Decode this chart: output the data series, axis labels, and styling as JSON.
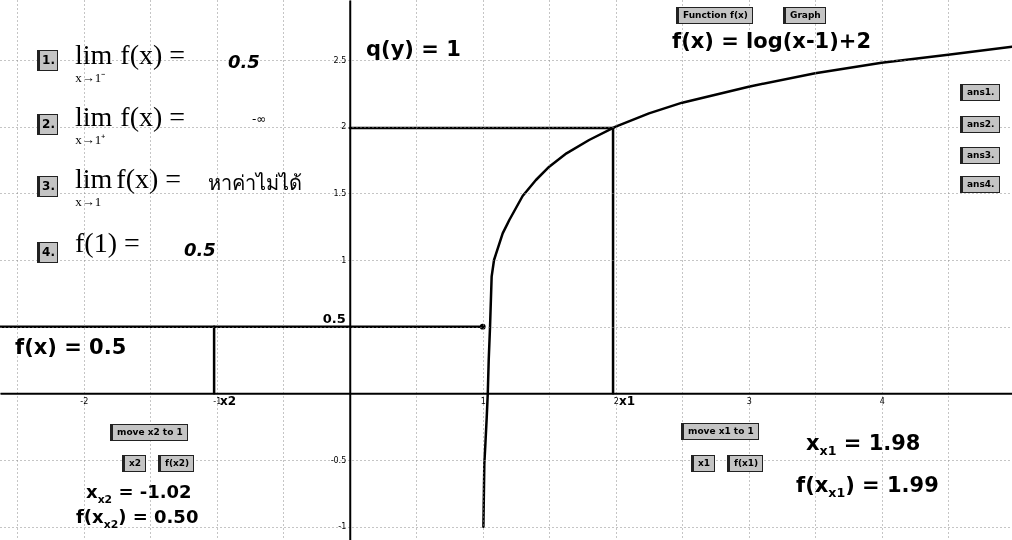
{
  "chart_data": {
    "type": "line",
    "xlim": [
      -2.63,
      4.98
    ],
    "ylim": [
      -1.1,
      2.95
    ],
    "xticks": [
      {
        "value": -2.5,
        "label": null
      },
      -2,
      {
        "value": -1.5,
        "label": null
      },
      -1,
      {
        "value": -0.5,
        "label": null
      },
      {
        "value": 0,
        "label": null
      },
      {
        "value": 0.5,
        "label": null
      },
      1,
      {
        "value": 1.5,
        "label": null
      },
      2,
      {
        "value": 2.5,
        "label": null
      },
      3,
      {
        "value": 3.5,
        "label": null
      },
      4,
      {
        "value": 4.5,
        "label": null
      }
    ],
    "yticks": [
      -1,
      -0.5,
      {
        "value": 0,
        "label": null
      },
      {
        "value": 0.5,
        "label": null
      },
      1,
      1.5,
      2,
      2.5
    ],
    "grid": true,
    "series": [
      {
        "color": "#000000",
        "x": [
          1.005,
          1.012,
          1.02,
          1.03,
          1.038,
          1.045,
          1.055,
          1.067,
          1.085,
          1.15,
          1.2,
          1.3,
          1.4,
          1.5,
          1.63,
          1.8,
          2,
          2.25,
          2.5,
          2.75,
          3,
          3.5,
          4,
          4.5,
          4.98
        ],
        "values": [
          -1,
          -0.53,
          -0.38,
          -0.18,
          0,
          0.25,
          0.5,
          0.875,
          1,
          1.2,
          1.3,
          1.48,
          1.6,
          1.7,
          1.8,
          1.9,
          2,
          2.1,
          2.18,
          2.24,
          2.3,
          2.4,
          2.48,
          2.54,
          2.6
        ]
      },
      {
        "color": "#000000",
        "x": [
          -2.63,
          1
        ],
        "values": [
          0.5,
          0.5
        ]
      },
      {
        "color": "#000000",
        "x": [
          -1.02,
          -1.02
        ],
        "values": [
          0,
          0.5
        ]
      },
      {
        "color": "#000000",
        "x": [
          1.98,
          1.98
        ],
        "values": [
          0,
          1.99
        ]
      },
      {
        "color": "#000000",
        "x": [
          0,
          1.98
        ],
        "values": [
          1.99,
          1.99
        ]
      },
      {
        "type": "scatter",
        "color": "#000000",
        "x": [
          1
        ],
        "values": [
          0.5
        ]
      }
    ],
    "annotations": [
      "1.",
      "lim$_{x→1⁻}$ f(x) =",
      "0.5",
      "2.",
      "lim$_{x→1⁺}$ f(x) =",
      "-∞",
      "3.",
      "lim$_{x→1}$ f(x) =",
      "หาค่าไม่ได้",
      "4.",
      "f(1) =",
      "0.5",
      "q(y) = 1",
      "Function f(x)",
      "Graph",
      "f(x) = log(x-1)+2",
      "ans1.",
      "ans2.",
      "ans3.",
      "ans4.",
      "f(x) = 0.5",
      "move x2 to 1",
      "x2",
      "f(x2)",
      "x$_{x2}$ = -1.02",
      "f(x$_{x2}$) = 0.50",
      "move x1 to 1",
      "x1",
      "f(x1)",
      "x$_{x1}$ = 1.98",
      "f(x$_{x1}$) = 1.99",
      {
        "text": "0.5",
        "x": 0,
        "y": 0.5
      },
      {
        "text": "x1",
        "x": 1.98,
        "y": 0
      },
      {
        "text": "x2",
        "x": -1.02,
        "y": 0
      }
    ]
  }
}
